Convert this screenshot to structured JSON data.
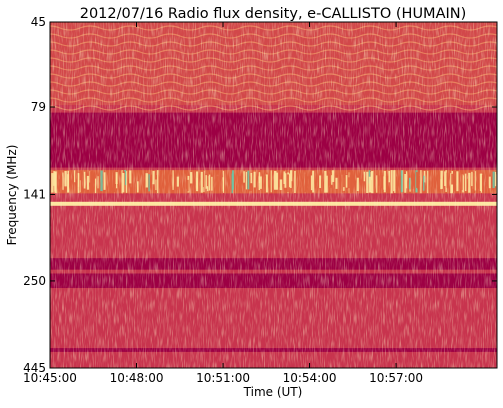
{
  "chart_data": {
    "type": "heatmap",
    "title": "2012/07/16  Radio flux density, e-CALLISTO (HUMAIN)",
    "xlabel": "Time (UT)",
    "ylabel": "Frequency (MHz)",
    "x_ticks": [
      "10:45:00",
      "10:48:00",
      "10:51:00",
      "10:54:00",
      "10:57:00"
    ],
    "y_ticks": [
      "45",
      "79",
      "141",
      "250",
      "445"
    ],
    "y_scale": "log",
    "xlim": [
      "10:45:00",
      "11:00:30"
    ],
    "ylim": [
      445,
      45
    ],
    "grid": false,
    "colormap": "Spectral_r",
    "colors": {
      "background_low": "#9d0044",
      "mid": "#e0603c",
      "high": "#fde7a0",
      "peak": "#6fc4a4"
    },
    "bands": [
      {
        "from_mhz": 45,
        "to_mhz": 78,
        "level": "moderate, wavy striations"
      },
      {
        "from_mhz": 82,
        "to_mhz": 118,
        "level": "saturated low (dark)"
      },
      {
        "from_mhz": 120,
        "to_mhz": 140,
        "level": "intense bright vertical bursts"
      },
      {
        "from_mhz": 148,
        "to_mhz": 152,
        "level": "bright horizontal line"
      },
      {
        "from_mhz": 215,
        "to_mhz": 232,
        "level": "dark band"
      },
      {
        "from_mhz": 238,
        "to_mhz": 262,
        "level": "dark band"
      },
      {
        "from_mhz": 390,
        "to_mhz": 400,
        "level": "dark band"
      }
    ]
  }
}
